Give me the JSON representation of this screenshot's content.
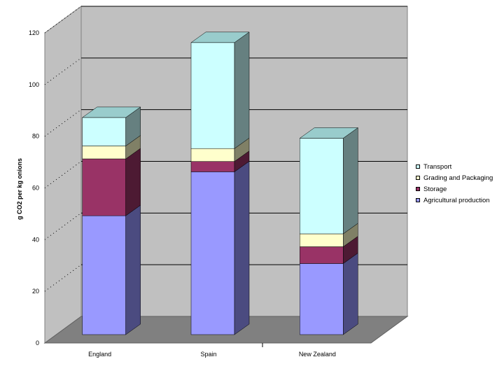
{
  "chart_data": {
    "type": "bar",
    "stacked": true,
    "three_d": true,
    "title": "",
    "xlabel": "",
    "ylabel": "g CO2 per kg onions",
    "ylim": [
      0,
      120
    ],
    "yticks": [
      "0",
      "20",
      "40",
      "60",
      "80",
      "100",
      "120"
    ],
    "grid": true,
    "legend_position": "right",
    "categories": [
      "England",
      "Spain",
      "New Zealand"
    ],
    "series": [
      {
        "name": "Agricultural production",
        "color": "#9999ff",
        "side_color": "#4b4b80",
        "values": [
          46,
          63,
          27.5
        ]
      },
      {
        "name": "Storage",
        "color": "#993366",
        "side_color": "#4d1a33",
        "values": [
          22,
          4,
          6.5
        ]
      },
      {
        "name": "Grading and Packaging",
        "color": "#ffffcc",
        "side_color": "#808066",
        "values": [
          5,
          5,
          5
        ]
      },
      {
        "name": "Transport",
        "color": "#ccffff",
        "side_color": "#668080",
        "values": [
          11,
          41,
          37
        ]
      }
    ]
  }
}
